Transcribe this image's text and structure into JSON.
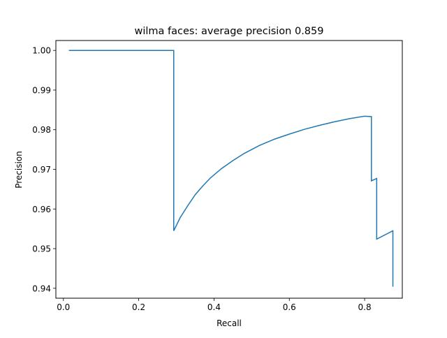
{
  "chart_data": {
    "type": "line",
    "title": "wilma faces: average precision 0.859",
    "xlabel": "Recall",
    "ylabel": "Precision",
    "xlim": [
      -0.02,
      0.9
    ],
    "ylim": [
      0.9375,
      1.0025
    ],
    "xticks": [
      0.0,
      0.2,
      0.4,
      0.6,
      0.8
    ],
    "xtick_labels": [
      "0.0",
      "0.2",
      "0.4",
      "0.6",
      "0.8"
    ],
    "yticks": [
      0.94,
      0.95,
      0.96,
      0.97,
      0.98,
      0.99,
      1.0
    ],
    "ytick_labels": [
      "0.94",
      "0.95",
      "0.96",
      "0.97",
      "0.98",
      "0.99",
      "1.00"
    ],
    "grid": false,
    "series": [
      {
        "color": "#1f77b4",
        "x": [
          0.0145,
          0.293,
          0.293,
          0.31,
          0.33,
          0.35,
          0.37,
          0.39,
          0.42,
          0.45,
          0.48,
          0.52,
          0.56,
          0.6,
          0.64,
          0.68,
          0.72,
          0.76,
          0.8,
          0.818,
          0.818,
          0.832,
          0.832,
          0.875,
          0.875
        ],
        "y": [
          1.0,
          1.0,
          0.9545,
          0.9578,
          0.9608,
          0.9636,
          0.9658,
          0.9678,
          0.9702,
          0.9722,
          0.974,
          0.976,
          0.9776,
          0.9789,
          0.9801,
          0.9811,
          0.982,
          0.9828,
          0.9834,
          0.9833,
          0.9671,
          0.9677,
          0.9524,
          0.9545,
          0.9404
        ]
      }
    ]
  }
}
